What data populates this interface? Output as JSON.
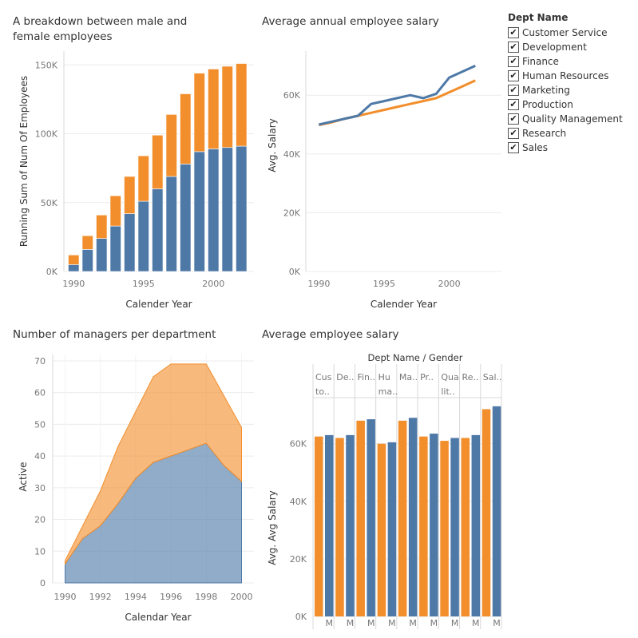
{
  "colors": {
    "blue": "#4e79a7",
    "orange": "#f28e2b",
    "grid": "#ececec",
    "axis": "#888888"
  },
  "legend": {
    "title": "Dept Name",
    "items": [
      "Customer Service",
      "Development",
      "Finance",
      "Human Resources",
      "Marketing",
      "Production",
      "Quality Management",
      "Research",
      "Sales"
    ],
    "checkmark": "✔"
  },
  "chart_data": [
    {
      "id": "gender-breakdown",
      "type": "bar",
      "stacked": true,
      "title": "A breakdown between male and female employees",
      "xlabel": "Calender Year",
      "ylabel": "Running Sum of Num Of Employees",
      "x": [
        1990,
        1991,
        1992,
        1993,
        1994,
        1995,
        1996,
        1997,
        1998,
        1999,
        2000,
        2001,
        2002
      ],
      "series": [
        {
          "color": "#4e79a7",
          "values": [
            5000,
            16000,
            24000,
            33000,
            42000,
            51000,
            60000,
            69000,
            78000,
            87000,
            89000,
            90000,
            91000
          ]
        },
        {
          "color": "#f28e2b",
          "values": [
            7000,
            10000,
            17000,
            22000,
            27000,
            33000,
            39000,
            45000,
            51000,
            57000,
            58000,
            59000,
            60000
          ]
        }
      ],
      "ylim": [
        0,
        160000
      ],
      "yticks": [
        0,
        50000,
        100000,
        150000
      ],
      "ytick_labels": [
        "0K",
        "50K",
        "100K",
        "150K"
      ],
      "xticks": [
        1990,
        1995,
        2000
      ]
    },
    {
      "id": "annual-salary",
      "type": "line",
      "title": "Average annual employee salary",
      "xlabel": "Calender Year",
      "ylabel": "Avg. Salary",
      "series": [
        {
          "color": "#4e79a7",
          "x": [
            1990,
            1991,
            1992,
            1993,
            1994,
            1995,
            1996,
            1997,
            1998,
            1999,
            2000,
            2001,
            2002
          ],
          "y": [
            50000,
            51000,
            52000,
            53000,
            57000,
            58000,
            59000,
            60000,
            59000,
            60500,
            66000,
            68000,
            70000
          ]
        },
        {
          "color": "#f28e2b",
          "x": [
            1990,
            1991,
            1992,
            1993,
            1994,
            1995,
            1996,
            1997,
            1998,
            1999,
            2000,
            2001,
            2002
          ],
          "y": [
            49800,
            50800,
            52000,
            53000,
            54000,
            55000,
            56000,
            57000,
            58000,
            59000,
            61000,
            63000,
            65000
          ]
        }
      ],
      "ylim": [
        0,
        75000
      ],
      "yticks": [
        0,
        20000,
        40000,
        60000
      ],
      "ytick_labels": [
        "0K",
        "20K",
        "40K",
        "60K"
      ],
      "xticks": [
        1990,
        1995,
        2000
      ]
    },
    {
      "id": "managers",
      "type": "area",
      "stacked": true,
      "title": "Number of managers per department",
      "xlabel": "Calendar Year",
      "ylabel": "Active",
      "x": [
        1990,
        1991,
        1992,
        1993,
        1994,
        1995,
        1996,
        1997,
        1998,
        1999,
        2000
      ],
      "series": [
        {
          "color": "#4e79a7",
          "values": [
            6,
            14,
            18,
            25,
            33,
            38,
            40,
            42,
            44,
            37,
            32
          ]
        },
        {
          "color": "#f28e2b",
          "values": [
            1,
            4,
            11,
            18,
            21,
            27,
            29,
            27,
            25,
            22,
            17
          ]
        }
      ],
      "ylim": [
        0,
        72
      ],
      "yticks": [
        0,
        10,
        20,
        30,
        40,
        50,
        60,
        70
      ],
      "xticks": [
        1990,
        1992,
        1994,
        1996,
        1998,
        2000
      ]
    },
    {
      "id": "dept-salary",
      "type": "bar",
      "title": "Average employee salary",
      "header": "Dept Name  /  Gender",
      "ylabel": "Avg. Avg Salary",
      "categories": [
        [
          "Cus",
          "to.."
        ],
        [
          "De.."
        ],
        [
          "Fin.."
        ],
        [
          "Hu",
          "ma.."
        ],
        [
          "Ma.."
        ],
        [
          "Pr.."
        ],
        [
          "Qua",
          "lit.."
        ],
        [
          "Re.."
        ],
        [
          "Sal.."
        ]
      ],
      "gender_label": "M",
      "series": [
        {
          "color": "#f28e2b",
          "values": [
            62500,
            62000,
            68000,
            60000,
            68000,
            62500,
            61000,
            62000,
            72000
          ]
        },
        {
          "color": "#4e79a7",
          "values": [
            63000,
            63000,
            68500,
            60500,
            69000,
            63500,
            62000,
            63000,
            73000
          ]
        }
      ],
      "ylim": [
        0,
        76000
      ],
      "yticks": [
        0,
        20000,
        40000,
        60000
      ],
      "ytick_labels": [
        "0K",
        "20K",
        "40K",
        "60K"
      ]
    }
  ]
}
